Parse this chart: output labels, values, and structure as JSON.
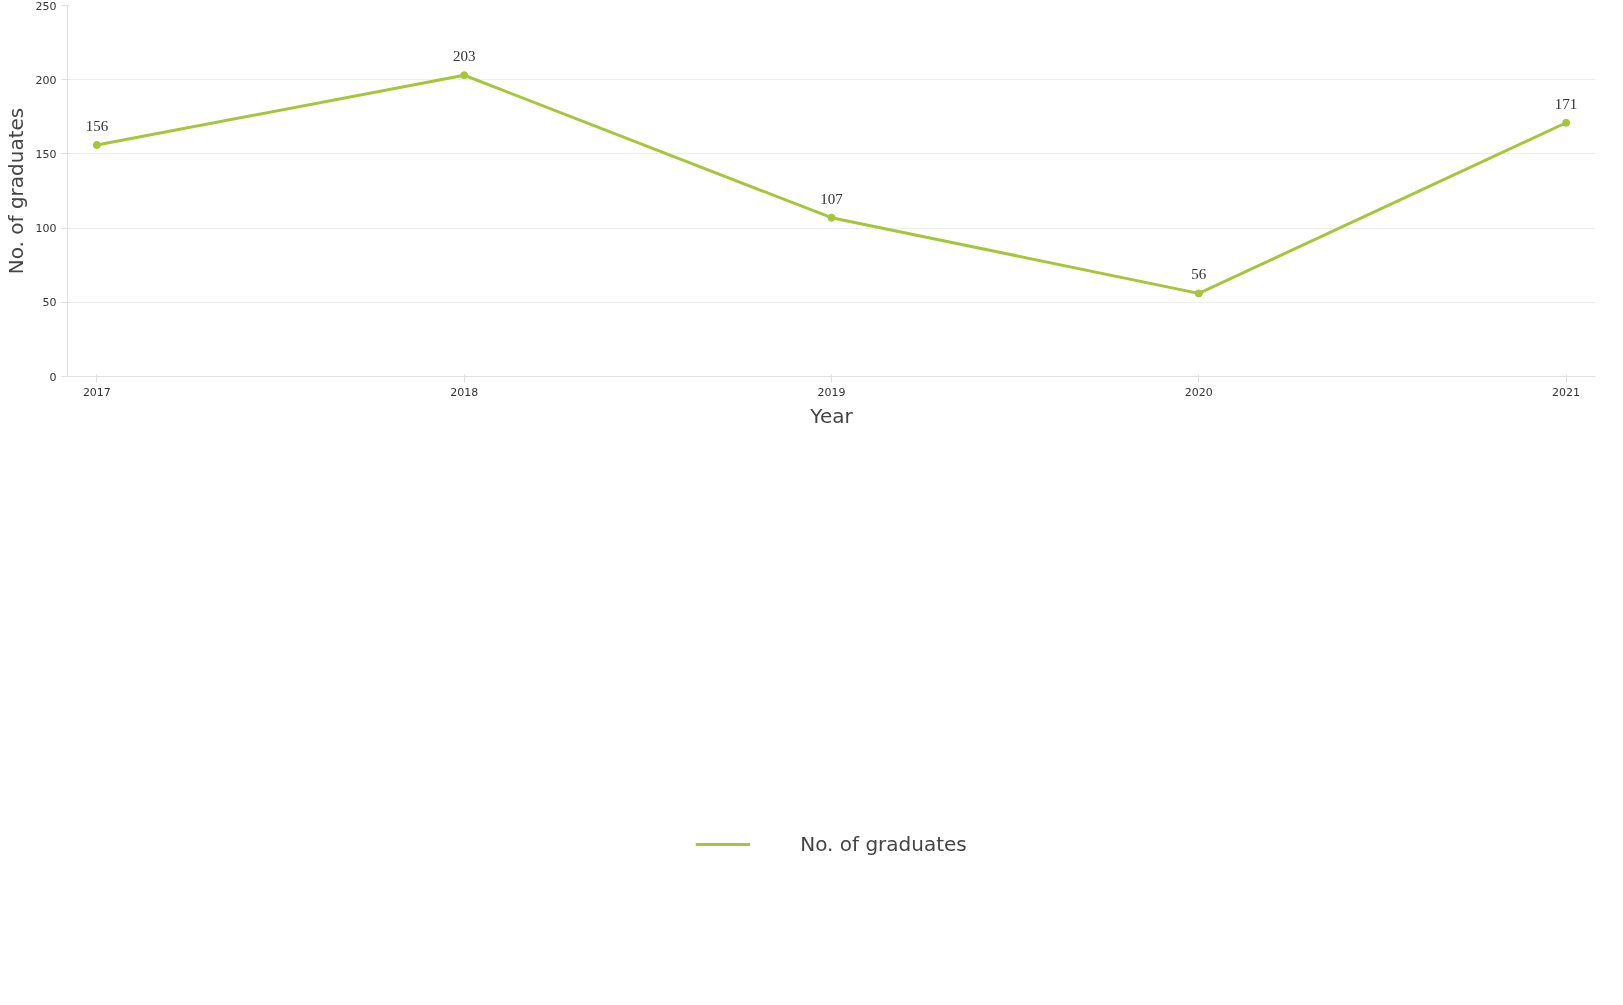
{
  "chart_data": {
    "type": "line",
    "xlabel": "Year",
    "ylabel": "No. of graduates",
    "categories": [
      "2017",
      "2018",
      "2019",
      "2020",
      "2021"
    ],
    "series": [
      {
        "name": "No. of graduates",
        "color": "#a4c639",
        "values": [
          156,
          203,
          107,
          56,
          171
        ]
      }
    ],
    "ylim": [
      0,
      250
    ],
    "yticks": [
      0,
      50,
      100,
      150,
      200,
      250
    ],
    "grid": "y",
    "legend": "bottom",
    "marker": "circle",
    "line_style": "solid",
    "data_labels": true
  }
}
